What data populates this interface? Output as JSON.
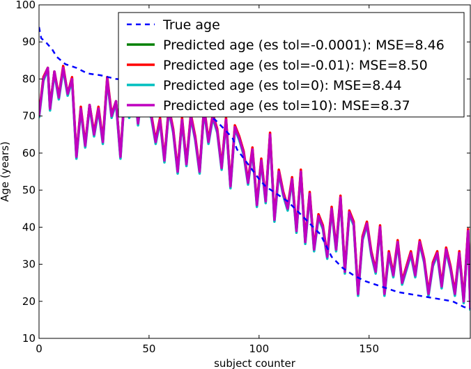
{
  "chart_data": {
    "type": "line",
    "title": "",
    "xlabel": "subject counter",
    "ylabel": "Age (years)",
    "xlim": [
      0,
      196
    ],
    "ylim": [
      10,
      100
    ],
    "xticks": [
      0,
      50,
      100,
      150
    ],
    "yticks": [
      10,
      20,
      30,
      40,
      50,
      60,
      70,
      80,
      90,
      100
    ],
    "grid": false,
    "legend_position": "top-right",
    "series": [
      {
        "name": "True age",
        "color": "#0000ff",
        "style": "dashed",
        "x": [
          0,
          1,
          3,
          6,
          8,
          12,
          17,
          22,
          28,
          35,
          45,
          55,
          60,
          65,
          70,
          75,
          80,
          85,
          88,
          90,
          95,
          100,
          103,
          108,
          113,
          118,
          123,
          128,
          133,
          138,
          143,
          148,
          153,
          158,
          163,
          168,
          173,
          178,
          183,
          188,
          193,
          196
        ],
        "values": [
          94,
          91,
          90,
          88,
          86,
          84,
          83,
          81.5,
          81,
          80,
          79.5,
          78,
          77,
          74,
          72,
          71,
          69,
          66,
          64,
          61,
          57,
          53,
          51,
          49,
          47,
          44,
          41,
          38,
          32,
          29,
          27,
          25.5,
          24.5,
          23.5,
          22.5,
          22,
          21.5,
          21,
          20.5,
          20,
          18.5,
          18
        ]
      },
      {
        "name": "Predicted age (es tol=-0.0001): MSE=8.46",
        "color": "#008000",
        "style": "solid",
        "x": [
          0,
          2,
          4,
          5,
          7,
          9,
          11,
          13,
          15,
          17,
          19,
          21,
          23,
          25,
          27,
          29,
          31,
          33,
          35,
          37,
          39,
          41,
          43,
          45,
          47,
          49,
          51,
          53,
          55,
          57,
          59,
          61,
          63,
          65,
          67,
          69,
          71,
          73,
          75,
          77,
          79,
          81,
          83,
          85,
          87,
          89,
          91,
          93,
          95,
          97,
          99,
          101,
          103,
          105,
          107,
          109,
          111,
          113,
          115,
          117,
          119,
          121,
          123,
          125,
          127,
          129,
          131,
          133,
          135,
          137,
          139,
          141,
          143,
          145,
          147,
          149,
          151,
          153,
          155,
          157,
          159,
          161,
          163,
          165,
          167,
          169,
          171,
          173,
          175,
          177,
          179,
          181,
          183,
          185,
          187,
          189,
          191,
          193,
          195,
          196
        ],
        "values": [
          70,
          80,
          83,
          72,
          82,
          75,
          83,
          76,
          80,
          59,
          72,
          62,
          73,
          65,
          72,
          63,
          80,
          70,
          74,
          59,
          77,
          70,
          80,
          68,
          78,
          72,
          70,
          63,
          69,
          58,
          72,
          66,
          55,
          69,
          57,
          70,
          64,
          55,
          72,
          63,
          70,
          66,
          56,
          69,
          51,
          67,
          64,
          60,
          52,
          61,
          46,
          58,
          47,
          65,
          42,
          55,
          49,
          45,
          53,
          39,
          55,
          36,
          49,
          34,
          43,
          40,
          32,
          45,
          34,
          48,
          28,
          44,
          41,
          22,
          37,
          41,
          33,
          28,
          40,
          22,
          33,
          27,
          36,
          25,
          29,
          33,
          27,
          36,
          31,
          22,
          30,
          33,
          24,
          34,
          29,
          22,
          33,
          20,
          39,
          18
        ]
      },
      {
        "name": "Predicted age (es tol=-0.01): MSE=8.50",
        "color": "#ff0000",
        "style": "solid",
        "x": [
          0,
          2,
          4,
          5,
          7,
          9,
          11,
          13,
          15,
          17,
          19,
          21,
          23,
          25,
          27,
          29,
          31,
          33,
          35,
          37,
          39,
          41,
          43,
          45,
          47,
          49,
          51,
          53,
          55,
          57,
          59,
          61,
          63,
          65,
          67,
          69,
          71,
          73,
          75,
          77,
          79,
          81,
          83,
          85,
          87,
          89,
          91,
          93,
          95,
          97,
          99,
          101,
          103,
          105,
          107,
          109,
          111,
          113,
          115,
          117,
          119,
          121,
          123,
          125,
          127,
          129,
          131,
          133,
          135,
          137,
          139,
          141,
          143,
          145,
          147,
          149,
          151,
          153,
          155,
          157,
          159,
          161,
          163,
          165,
          167,
          169,
          171,
          173,
          175,
          177,
          179,
          181,
          183,
          185,
          187,
          189,
          191,
          193,
          195,
          196
        ],
        "values": [
          70.5,
          80.5,
          83,
          72.5,
          82,
          75.5,
          83.5,
          76,
          80.5,
          59.5,
          72.5,
          62.5,
          73,
          65.5,
          72.5,
          63.5,
          80.5,
          70.5,
          74,
          59.5,
          77.5,
          70.5,
          80.5,
          68.5,
          78,
          72.5,
          70.5,
          63.5,
          69.5,
          58.5,
          72.5,
          66.5,
          55.5,
          69.5,
          57.5,
          70.5,
          64.5,
          55.5,
          72.5,
          63.5,
          70.5,
          66.5,
          56.5,
          69.5,
          51.5,
          67.5,
          64.5,
          60.5,
          52.5,
          61.5,
          46.5,
          58.5,
          47.5,
          65.5,
          42.5,
          55.5,
          49.5,
          45.5,
          53.5,
          39.5,
          55.5,
          36.5,
          49.5,
          34.5,
          43.5,
          40.5,
          32.5,
          45.5,
          34.5,
          48.5,
          28.5,
          44.5,
          41.5,
          22.5,
          37.5,
          41.5,
          33.5,
          28.5,
          40.5,
          22.5,
          33.5,
          27.5,
          36.5,
          25.5,
          29.5,
          33.5,
          27.5,
          36.5,
          31.5,
          22.5,
          30.5,
          33.5,
          24.5,
          34.5,
          29.5,
          22.5,
          33.5,
          20.5,
          39.5,
          18.5
        ]
      },
      {
        "name": "Predicted age (es tol=0): MSE=8.44",
        "color": "#00bfbf",
        "style": "solid",
        "x": [
          0,
          2,
          4,
          5,
          7,
          9,
          11,
          13,
          15,
          17,
          19,
          21,
          23,
          25,
          27,
          29,
          31,
          33,
          35,
          37,
          39,
          41,
          43,
          45,
          47,
          49,
          51,
          53,
          55,
          57,
          59,
          61,
          63,
          65,
          67,
          69,
          71,
          73,
          75,
          77,
          79,
          81,
          83,
          85,
          87,
          89,
          91,
          93,
          95,
          97,
          99,
          101,
          103,
          105,
          107,
          109,
          111,
          113,
          115,
          117,
          119,
          121,
          123,
          125,
          127,
          129,
          131,
          133,
          135,
          137,
          139,
          141,
          143,
          145,
          147,
          149,
          151,
          153,
          155,
          157,
          159,
          161,
          163,
          165,
          167,
          169,
          171,
          173,
          175,
          177,
          179,
          181,
          183,
          185,
          187,
          189,
          191,
          193,
          195,
          196
        ],
        "values": [
          69.5,
          79.5,
          82.5,
          71.5,
          81.5,
          74.5,
          82.5,
          75.5,
          79.5,
          58.5,
          71.5,
          61.5,
          72.5,
          64.5,
          71.5,
          62.5,
          79.5,
          69.5,
          73.5,
          58.5,
          76.5,
          69.5,
          79.5,
          67.5,
          77.5,
          71.5,
          69.5,
          62.5,
          68.5,
          57.5,
          71.5,
          65.5,
          54.5,
          68.5,
          56.5,
          69.5,
          63.5,
          54.5,
          71.5,
          62.5,
          69.5,
          65.5,
          55.5,
          68.5,
          50.5,
          66.5,
          63.5,
          59.5,
          51.5,
          60.5,
          45.5,
          57.5,
          46.5,
          64.5,
          41.5,
          54.5,
          48.5,
          44.5,
          52.5,
          38.5,
          54.5,
          35.5,
          48.5,
          33.5,
          42.5,
          39.5,
          31.5,
          44.5,
          33.5,
          47.5,
          27.5,
          43.5,
          40.5,
          21.5,
          36.5,
          40.5,
          32.5,
          27.5,
          39.5,
          21.5,
          32.5,
          26.5,
          35.5,
          24.5,
          28.5,
          32.5,
          26.5,
          35.5,
          30.5,
          21.5,
          29.5,
          32.5,
          23.5,
          33.5,
          28.5,
          21.5,
          32.5,
          19.5,
          38.5,
          17.5
        ]
      },
      {
        "name": "Predicted age (es tol=10): MSE=8.37",
        "color": "#bf00bf",
        "style": "solid",
        "x": [
          0,
          2,
          4,
          5,
          7,
          9,
          11,
          13,
          15,
          17,
          19,
          21,
          23,
          25,
          27,
          29,
          31,
          33,
          35,
          37,
          39,
          41,
          43,
          45,
          47,
          49,
          51,
          53,
          55,
          57,
          59,
          61,
          63,
          65,
          67,
          69,
          71,
          73,
          75,
          77,
          79,
          81,
          83,
          85,
          87,
          89,
          91,
          93,
          95,
          97,
          99,
          101,
          103,
          105,
          107,
          109,
          111,
          113,
          115,
          117,
          119,
          121,
          123,
          125,
          127,
          129,
          131,
          133,
          135,
          137,
          139,
          141,
          143,
          145,
          147,
          149,
          151,
          153,
          155,
          157,
          159,
          161,
          163,
          165,
          167,
          169,
          171,
          173,
          175,
          177,
          179,
          181,
          183,
          185,
          187,
          189,
          191,
          193,
          195,
          196
        ],
        "values": [
          70,
          80,
          83,
          72,
          82,
          75,
          83,
          76,
          80,
          59,
          72,
          62,
          73,
          65,
          72,
          63,
          80,
          70,
          74,
          59,
          77,
          70,
          80,
          68,
          78,
          72,
          70,
          63,
          69,
          58,
          72,
          66,
          55,
          69,
          57,
          70,
          64,
          55,
          72,
          63,
          70,
          66,
          56,
          69,
          51,
          67,
          64,
          60,
          52,
          61,
          46,
          58,
          47,
          65,
          42,
          55,
          49,
          45,
          53,
          39,
          55,
          36,
          49,
          34,
          43,
          40,
          32,
          45,
          34,
          48,
          28,
          44,
          41,
          22,
          37,
          41,
          33,
          28,
          40,
          22,
          33,
          27,
          36,
          25,
          29,
          33,
          27,
          36,
          31,
          22,
          30,
          33,
          24,
          34,
          29,
          22,
          33,
          20,
          39,
          18
        ]
      }
    ]
  }
}
